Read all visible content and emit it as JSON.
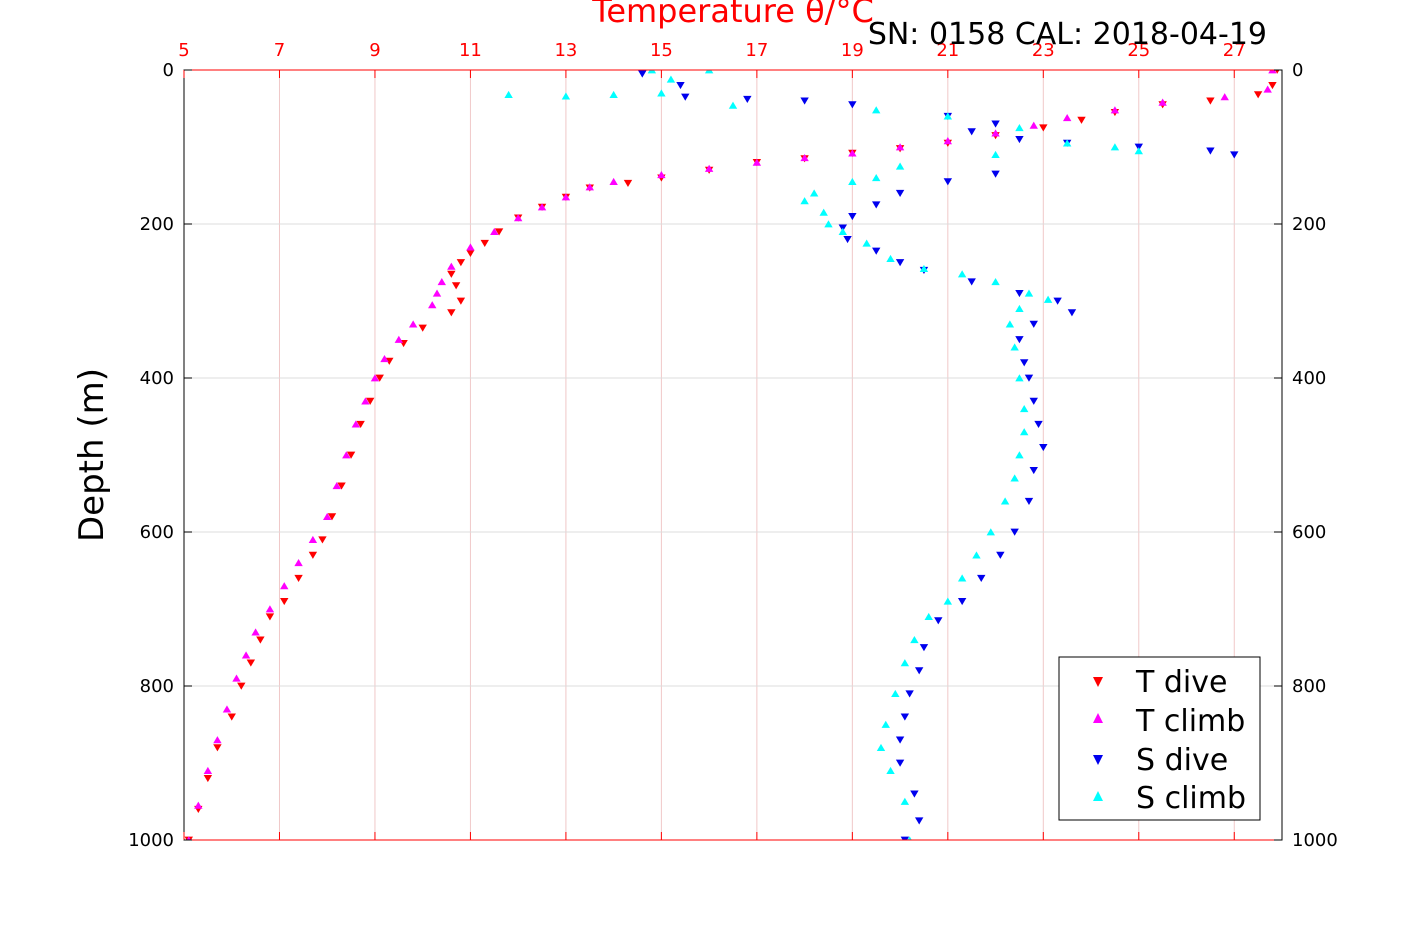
{
  "chart_data": {
    "type": "scatter",
    "title": "SN: 0158  CAL: 2018-04-19",
    "xlabel": "Temperature θ/°C",
    "ylabel": "Depth (m)",
    "xlim": [
      5,
      28
    ],
    "ylim": [
      1000,
      0
    ],
    "xticks": [
      5,
      7,
      9,
      11,
      13,
      15,
      17,
      19,
      21,
      23,
      25,
      27
    ],
    "yticks": [
      0,
      200,
      400,
      600,
      800,
      1000
    ],
    "grid": true,
    "legend_position": "bottom-right",
    "colors": {
      "axis_top": "#ff0000",
      "axis_sides": "#000000",
      "grid": "#dcdcdc",
      "grid_x": "#f0c8c8"
    },
    "series": [
      {
        "name": "T dive",
        "marker": "triangle-down",
        "color": "#ff0000",
        "points": [
          [
            27.9,
            0
          ],
          [
            27.8,
            20
          ],
          [
            27.5,
            32
          ],
          [
            26.5,
            40
          ],
          [
            25.5,
            45
          ],
          [
            24.5,
            55
          ],
          [
            23.8,
            65
          ],
          [
            23.0,
            75
          ],
          [
            22.0,
            85
          ],
          [
            21.0,
            95
          ],
          [
            20.0,
            102
          ],
          [
            19.0,
            108
          ],
          [
            18.0,
            115
          ],
          [
            17.0,
            120
          ],
          [
            16.0,
            130
          ],
          [
            15.0,
            140
          ],
          [
            14.3,
            147
          ],
          [
            13.5,
            153
          ],
          [
            13.0,
            165
          ],
          [
            12.5,
            178
          ],
          [
            12.0,
            192
          ],
          [
            11.6,
            210
          ],
          [
            11.3,
            225
          ],
          [
            11.0,
            238
          ],
          [
            10.8,
            250
          ],
          [
            10.6,
            265
          ],
          [
            10.7,
            280
          ],
          [
            10.8,
            300
          ],
          [
            10.6,
            315
          ],
          [
            10.0,
            335
          ],
          [
            9.6,
            355
          ],
          [
            9.3,
            378
          ],
          [
            9.1,
            400
          ],
          [
            8.9,
            430
          ],
          [
            8.7,
            460
          ],
          [
            8.5,
            500
          ],
          [
            8.3,
            540
          ],
          [
            8.1,
            580
          ],
          [
            7.9,
            610
          ],
          [
            7.7,
            630
          ],
          [
            7.4,
            660
          ],
          [
            7.1,
            690
          ],
          [
            6.8,
            710
          ],
          [
            6.6,
            740
          ],
          [
            6.4,
            770
          ],
          [
            6.2,
            800
          ],
          [
            6.0,
            840
          ],
          [
            5.7,
            880
          ],
          [
            5.5,
            920
          ],
          [
            5.3,
            960
          ],
          [
            5.1,
            1000
          ]
        ]
      },
      {
        "name": "T climb",
        "marker": "triangle-up",
        "color": "#ff00ff",
        "points": [
          [
            27.8,
            0
          ],
          [
            27.7,
            25
          ],
          [
            26.8,
            35
          ],
          [
            25.5,
            42
          ],
          [
            24.5,
            52
          ],
          [
            23.5,
            62
          ],
          [
            22.8,
            72
          ],
          [
            22.0,
            82
          ],
          [
            21.0,
            92
          ],
          [
            20.0,
            100
          ],
          [
            19.0,
            108
          ],
          [
            18.0,
            114
          ],
          [
            17.0,
            120
          ],
          [
            16.0,
            128
          ],
          [
            15.0,
            136
          ],
          [
            14.0,
            145
          ],
          [
            13.5,
            152
          ],
          [
            13.0,
            165
          ],
          [
            12.5,
            178
          ],
          [
            12.0,
            192
          ],
          [
            11.5,
            210
          ],
          [
            11.0,
            230
          ],
          [
            10.6,
            255
          ],
          [
            10.4,
            275
          ],
          [
            10.3,
            290
          ],
          [
            10.2,
            305
          ],
          [
            9.8,
            330
          ],
          [
            9.5,
            350
          ],
          [
            9.2,
            375
          ],
          [
            9.0,
            400
          ],
          [
            8.8,
            430
          ],
          [
            8.6,
            460
          ],
          [
            8.4,
            500
          ],
          [
            8.2,
            540
          ],
          [
            8.0,
            580
          ],
          [
            7.7,
            610
          ],
          [
            7.4,
            640
          ],
          [
            7.1,
            670
          ],
          [
            6.8,
            700
          ],
          [
            6.5,
            730
          ],
          [
            6.3,
            760
          ],
          [
            6.1,
            790
          ],
          [
            5.9,
            830
          ],
          [
            5.7,
            870
          ],
          [
            5.5,
            910
          ],
          [
            5.3,
            955
          ],
          [
            5.1,
            1000
          ]
        ]
      },
      {
        "name": "S dive",
        "marker": "triangle-down",
        "color": "#0000ee",
        "points": [
          [
            14.6,
            5
          ],
          [
            15.4,
            20
          ],
          [
            15.5,
            35
          ],
          [
            16.8,
            38
          ],
          [
            18.0,
            40
          ],
          [
            19.0,
            45
          ],
          [
            21.0,
            60
          ],
          [
            22.0,
            70
          ],
          [
            21.5,
            80
          ],
          [
            22.5,
            90
          ],
          [
            23.5,
            95
          ],
          [
            25.0,
            100
          ],
          [
            26.5,
            105
          ],
          [
            27.0,
            110
          ],
          [
            22.0,
            135
          ],
          [
            21.0,
            145
          ],
          [
            20.0,
            160
          ],
          [
            19.5,
            175
          ],
          [
            19.0,
            190
          ],
          [
            18.8,
            205
          ],
          [
            18.9,
            220
          ],
          [
            19.5,
            235
          ],
          [
            20.0,
            250
          ],
          [
            20.5,
            260
          ],
          [
            21.5,
            275
          ],
          [
            22.5,
            290
          ],
          [
            23.3,
            300
          ],
          [
            23.6,
            315
          ],
          [
            22.8,
            330
          ],
          [
            22.5,
            350
          ],
          [
            22.6,
            380
          ],
          [
            22.7,
            400
          ],
          [
            22.8,
            430
          ],
          [
            22.9,
            460
          ],
          [
            23.0,
            490
          ],
          [
            22.8,
            520
          ],
          [
            22.7,
            560
          ],
          [
            22.4,
            600
          ],
          [
            22.1,
            630
          ],
          [
            21.7,
            660
          ],
          [
            21.3,
            690
          ],
          [
            20.8,
            715
          ],
          [
            20.5,
            750
          ],
          [
            20.4,
            780
          ],
          [
            20.2,
            810
          ],
          [
            20.1,
            840
          ],
          [
            20.0,
            870
          ],
          [
            20.0,
            900
          ],
          [
            20.3,
            940
          ],
          [
            20.4,
            975
          ],
          [
            20.1,
            1000
          ]
        ]
      },
      {
        "name": "S climb",
        "marker": "triangle-up",
        "color": "#00ffff",
        "points": [
          [
            14.8,
            0
          ],
          [
            15.2,
            12
          ],
          [
            16.0,
            0
          ],
          [
            11.8,
            32
          ],
          [
            13.0,
            34
          ],
          [
            14.0,
            32
          ],
          [
            15.0,
            30
          ],
          [
            16.5,
            46
          ],
          [
            19.5,
            52
          ],
          [
            21.0,
            60
          ],
          [
            22.5,
            75
          ],
          [
            23.5,
            95
          ],
          [
            24.5,
            100
          ],
          [
            25.0,
            105
          ],
          [
            22.0,
            110
          ],
          [
            20.0,
            125
          ],
          [
            19.5,
            140
          ],
          [
            19.0,
            145
          ],
          [
            18.2,
            160
          ],
          [
            18.0,
            170
          ],
          [
            18.4,
            185
          ],
          [
            18.5,
            200
          ],
          [
            18.8,
            210
          ],
          [
            19.3,
            225
          ],
          [
            19.8,
            245
          ],
          [
            20.5,
            258
          ],
          [
            21.3,
            265
          ],
          [
            22.0,
            275
          ],
          [
            22.7,
            290
          ],
          [
            23.1,
            298
          ],
          [
            22.5,
            310
          ],
          [
            22.3,
            330
          ],
          [
            22.4,
            360
          ],
          [
            22.5,
            400
          ],
          [
            22.6,
            440
          ],
          [
            22.6,
            470
          ],
          [
            22.5,
            500
          ],
          [
            22.4,
            530
          ],
          [
            22.2,
            560
          ],
          [
            21.9,
            600
          ],
          [
            21.6,
            630
          ],
          [
            21.3,
            660
          ],
          [
            21.0,
            690
          ],
          [
            20.6,
            710
          ],
          [
            20.3,
            740
          ],
          [
            20.1,
            770
          ],
          [
            19.9,
            810
          ],
          [
            19.7,
            850
          ],
          [
            19.6,
            880
          ],
          [
            19.8,
            910
          ],
          [
            20.1,
            950
          ],
          [
            20.2,
            1000
          ]
        ]
      }
    ]
  }
}
